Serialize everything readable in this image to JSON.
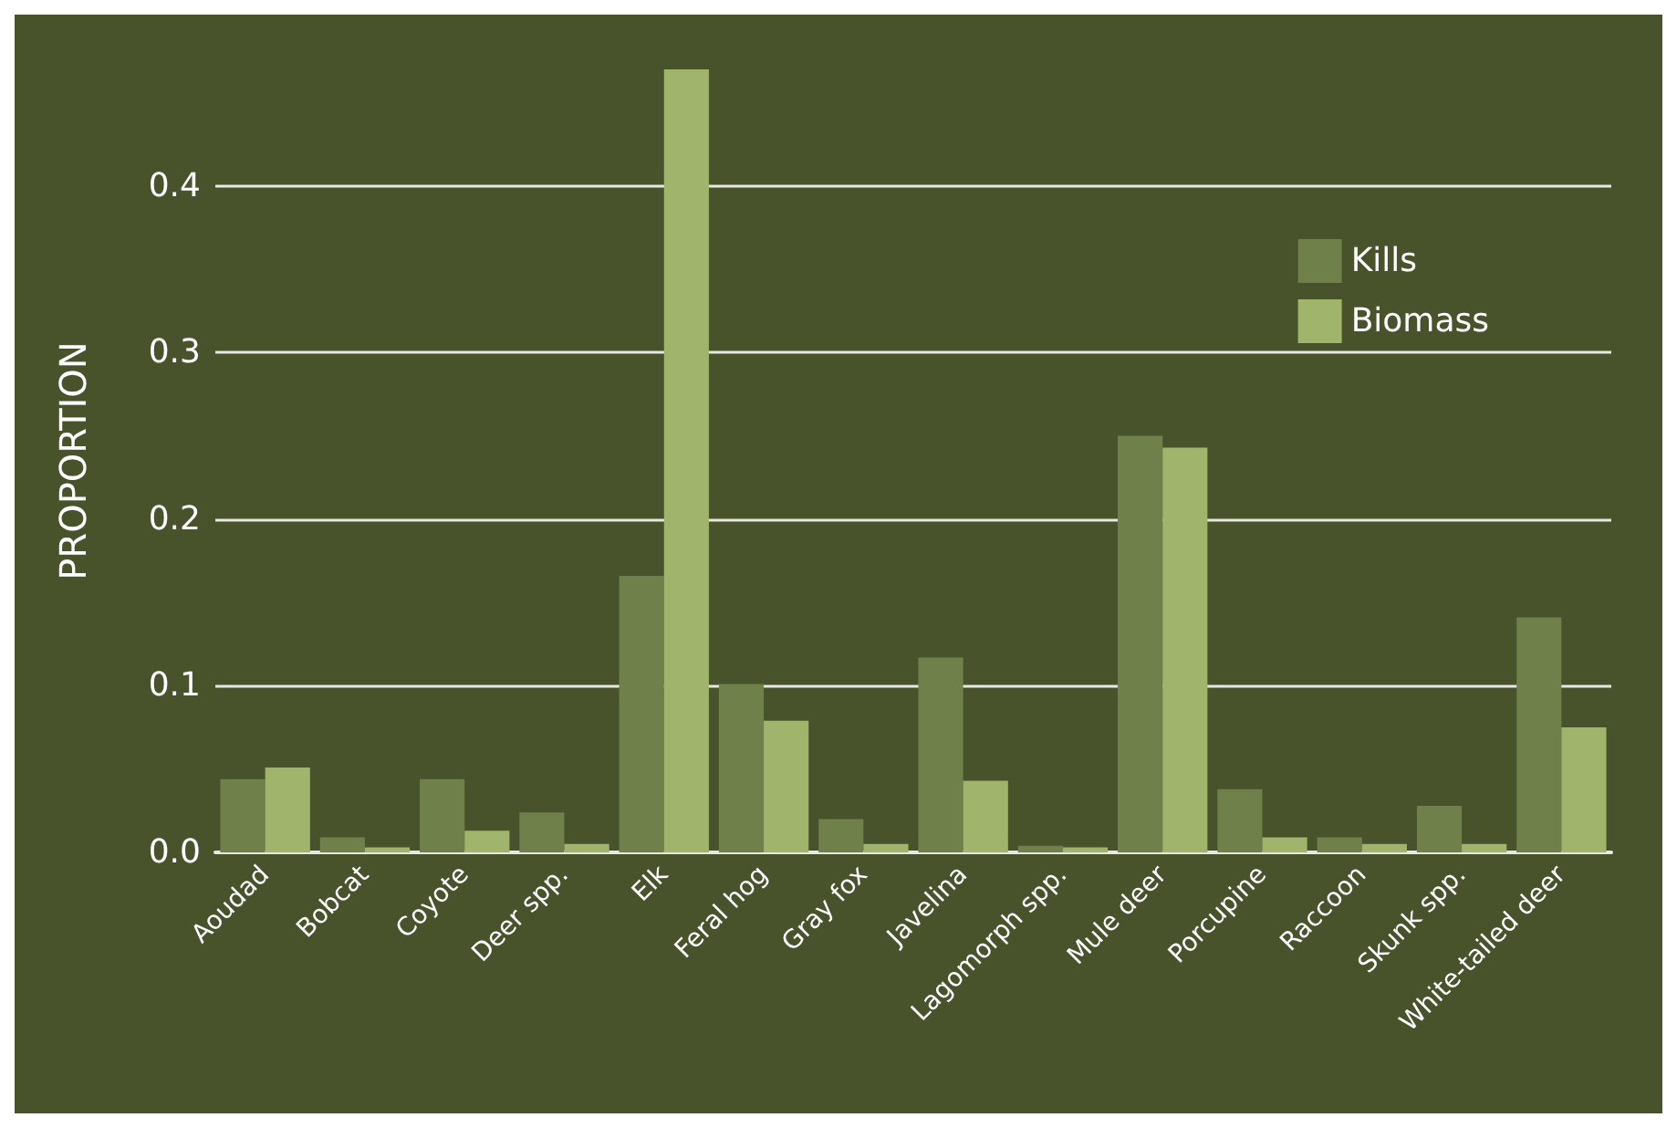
{
  "chart_data": {
    "type": "bar",
    "ylabel": "PROPORTION",
    "categories": [
      "Aoudad",
      "Bobcat",
      "Coyote",
      "Deer spp.",
      "Elk",
      "Feral hog",
      "Gray fox",
      "Javelina",
      "Lagomorph spp.",
      "Mule deer",
      "Porcupine",
      "Raccoon",
      "Skunk spp.",
      "White-tailed deer"
    ],
    "series": [
      {
        "name": "Kills",
        "color": "#6f804a",
        "values": [
          0.044,
          0.009,
          0.044,
          0.024,
          0.166,
          0.101,
          0.02,
          0.117,
          0.004,
          0.25,
          0.038,
          0.009,
          0.028,
          0.141
        ]
      },
      {
        "name": "Biomass",
        "color": "#a0b46c",
        "values": [
          0.051,
          0.003,
          0.013,
          0.005,
          0.47,
          0.079,
          0.005,
          0.043,
          0.003,
          0.243,
          0.009,
          0.005,
          0.005,
          0.075
        ]
      }
    ],
    "yticks": [
      {
        "value": 0,
        "label": "0.0"
      },
      {
        "value": 0.1,
        "label": "0.1"
      },
      {
        "value": 0.2,
        "label": "0.2"
      },
      {
        "value": 0.3,
        "label": "0.3"
      },
      {
        "value": 0.4,
        "label": "0.4"
      }
    ],
    "ylim": [
      0,
      0.47
    ],
    "grid": "y",
    "legend": "top right"
  }
}
